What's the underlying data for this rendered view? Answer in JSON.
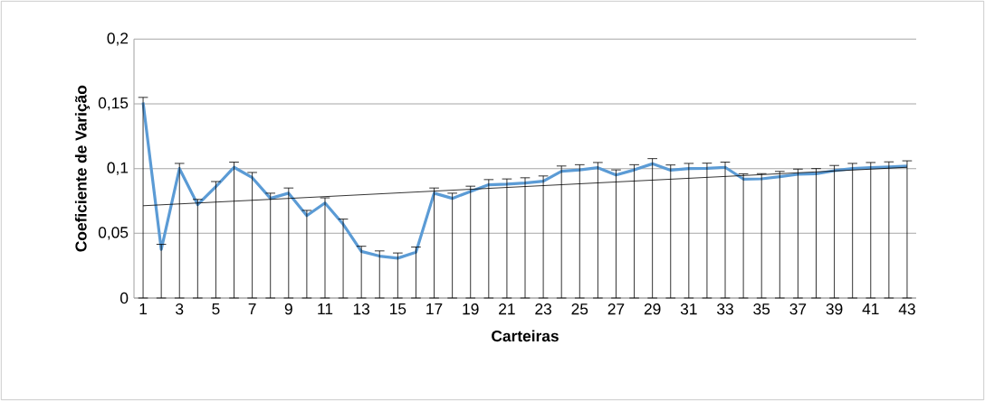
{
  "chart_data": {
    "type": "line",
    "xlabel": "Carteiras",
    "ylabel": "Coeficiente de Varição",
    "categories": [
      "1",
      null,
      "3",
      null,
      "5",
      null,
      "7",
      null,
      "9",
      null,
      "11",
      null,
      "13",
      null,
      "15",
      null,
      "17",
      null,
      "19",
      null,
      "21",
      null,
      "23",
      null,
      "25",
      null,
      "27",
      null,
      "29",
      null,
      "31",
      null,
      "33",
      null,
      "35",
      null,
      "37",
      null,
      "39",
      null,
      "41",
      null,
      "43"
    ],
    "series": [
      {
        "color": "#5b9bd5",
        "values": [
          0.151,
          0.0375,
          0.1,
          0.0722,
          0.086,
          0.101,
          0.093,
          0.077,
          0.081,
          0.0637,
          0.0734,
          0.057,
          0.036,
          0.0324,
          0.0308,
          0.0354,
          0.081,
          0.077,
          0.0824,
          0.0875,
          0.088,
          0.0889,
          0.0903,
          0.098,
          0.099,
          0.1007,
          0.095,
          0.099,
          0.1037,
          0.0988,
          0.1,
          0.1002,
          0.101,
          0.0919,
          0.0921,
          0.0938,
          0.0956,
          0.096,
          0.0984,
          0.1,
          0.1007,
          0.1012,
          0.102
        ],
        "errors": [
          [
            0,
            0.155
          ],
          [
            0,
            0.0415
          ],
          [
            0,
            0.104
          ],
          [
            0,
            0.0762
          ],
          [
            0,
            0.09
          ],
          [
            0,
            0.105
          ],
          [
            0,
            0.097
          ],
          [
            0,
            0.081
          ],
          [
            0,
            0.085
          ],
          [
            0,
            0.0677
          ],
          [
            0,
            0.0774
          ],
          [
            0,
            0.061
          ],
          [
            0,
            0.04
          ],
          [
            0,
            0.0364
          ],
          [
            0,
            0.0348
          ],
          [
            0,
            0.0394
          ],
          [
            0,
            0.085
          ],
          [
            0,
            0.081
          ],
          [
            0,
            0.0864
          ],
          [
            0,
            0.0915
          ],
          [
            0,
            0.092
          ],
          [
            0,
            0.0929
          ],
          [
            0,
            0.0943
          ],
          [
            0,
            0.102
          ],
          [
            0,
            0.103
          ],
          [
            0,
            0.1047
          ],
          [
            0,
            0.099
          ],
          [
            0,
            0.103
          ],
          [
            0,
            0.1077
          ],
          [
            0,
            0.1028
          ],
          [
            0,
            0.104
          ],
          [
            0,
            0.1042
          ],
          [
            0,
            0.105
          ],
          [
            0,
            0.0959
          ],
          [
            0,
            0.0961
          ],
          [
            0,
            0.0978
          ],
          [
            0,
            0.0996
          ],
          [
            0,
            0.1
          ],
          [
            0,
            0.1024
          ],
          [
            0,
            0.104
          ],
          [
            0,
            0.1047
          ],
          [
            0,
            0.1052
          ],
          [
            0,
            0.106
          ]
        ]
      },
      {
        "type": "line",
        "color": "#000000",
        "x": [
          "1",
          "43"
        ],
        "values": [
          0.0713,
          0.101
        ]
      }
    ],
    "ylim": [
      0,
      0.2
    ],
    "yticks": [
      {
        "value": 0,
        "label": "0"
      },
      {
        "value": 0.05,
        "label": "0,05"
      },
      {
        "value": 0.1,
        "label": "0,1"
      },
      {
        "value": 0.15,
        "label": "0,15"
      },
      {
        "value": 0.2,
        "label": "0,2"
      }
    ],
    "grid": "y",
    "marker": "none",
    "line_style": "solid"
  }
}
